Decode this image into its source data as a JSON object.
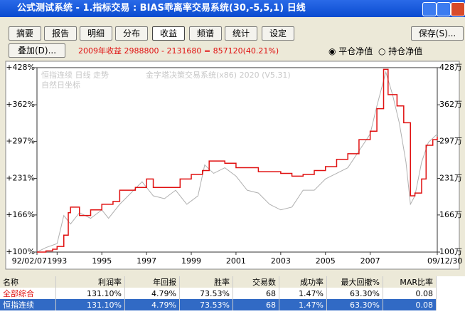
{
  "window": {
    "title": "公式测试系统 - 1.指标交易 : BIAS乖离率交易系统(30,-5,5,1) 日线"
  },
  "tabs": [
    "摘要",
    "报告",
    "明细",
    "分布",
    "收益",
    "频谱",
    "统计",
    "设定"
  ],
  "save_button": "保存(S)...",
  "overlay_button": "叠加(D)...",
  "summary": "2009年收益 2988800 - 2131680 = 857120(40.21%)",
  "radios": [
    "平仓净值",
    "持仓净值"
  ],
  "chart_data": {
    "type": "line",
    "annotations": [
      "恒指连续 日线 走势",
      "金字塔决策交易系统(x86) 2020 (V5.31)",
      "自然日坐标"
    ],
    "xlim": [
      1992.1,
      2010
    ],
    "xticks": [
      {
        "value": 1992.1,
        "label": "92/02/07"
      },
      1993,
      1995,
      1997,
      1999,
      2001,
      2003,
      2005,
      2007,
      {
        "value": 2010,
        "label": "09/12/30"
      }
    ],
    "ylim": [
      100,
      428
    ],
    "yticks": [
      {
        "value": 100,
        "label": "+100%"
      },
      {
        "value": 166,
        "label": "+166%"
      },
      {
        "value": 231,
        "label": "+231%"
      },
      {
        "value": 297,
        "label": "+297%"
      },
      {
        "value": 362,
        "label": "+362%"
      },
      {
        "value": 428,
        "label": "+428%"
      }
    ],
    "y2lim": [
      100,
      428
    ],
    "y2ticks": [
      {
        "value": 100,
        "label": "100万"
      },
      {
        "value": 166,
        "label": "166万"
      },
      {
        "value": 231,
        "label": "231万"
      },
      {
        "value": 297,
        "label": "297万"
      },
      {
        "value": 362,
        "label": "362万"
      },
      {
        "value": 428,
        "label": "428万"
      }
    ],
    "series": [
      {
        "color": "#b0b0b0",
        "step": false,
        "x": [
          1992.1,
          1992.5,
          1993.0,
          1993.3,
          1993.6,
          1994.0,
          1994.5,
          1995.0,
          1995.3,
          1995.8,
          1996.3,
          1996.8,
          1997.3,
          1997.8,
          1998.3,
          1998.8,
          1999.3,
          1999.6,
          2000.0,
          2000.5,
          2001.0,
          2001.5,
          2002.0,
          2002.5,
          2003.0,
          2003.5,
          2004.0,
          2004.5,
          2005.0,
          2005.5,
          2006.0,
          2006.5,
          2007.0,
          2007.3,
          2007.7,
          2008.0,
          2008.3,
          2008.6,
          2008.8,
          2009.0,
          2009.3,
          2009.6,
          2010
        ],
        "values": [
          100,
          108,
          115,
          165,
          150,
          170,
          160,
          175,
          160,
          185,
          205,
          225,
          200,
          195,
          210,
          185,
          200,
          255,
          240,
          250,
          235,
          210,
          205,
          185,
          175,
          180,
          210,
          210,
          230,
          240,
          250,
          280,
          310,
          360,
          420,
          380,
          330,
          260,
          185,
          200,
          260,
          295,
          310
        ]
      },
      {
        "color": "#e01010",
        "step": true,
        "x": [
          1992.1,
          1992.5,
          1992.8,
          1993.0,
          1993.3,
          1993.5,
          1993.6,
          1994.0,
          1994.5,
          1995.0,
          1995.5,
          1995.8,
          1996.5,
          1997.0,
          1997.3,
          1998.0,
          1998.5,
          1999.0,
          1999.5,
          1999.8,
          2000.5,
          2001.0,
          2001.5,
          2002.0,
          2003.0,
          2003.5,
          2004.0,
          2004.5,
          2005.0,
          2005.5,
          2006.0,
          2006.5,
          2007.0,
          2007.3,
          2007.6,
          2007.8,
          2008.2,
          2008.5,
          2008.8,
          2009.0,
          2009.3,
          2009.5,
          2009.8,
          2010
        ],
        "values": [
          100,
          102,
          105,
          110,
          130,
          170,
          180,
          165,
          175,
          185,
          190,
          210,
          215,
          230,
          215,
          215,
          230,
          238,
          245,
          262,
          258,
          250,
          250,
          243,
          240,
          235,
          238,
          245,
          252,
          265,
          275,
          300,
          315,
          355,
          425,
          380,
          360,
          330,
          200,
          205,
          230,
          290,
          300,
          305
        ]
      }
    ]
  },
  "table": {
    "header": [
      "名称",
      "利润率",
      "年回报",
      "胜率",
      "交易数",
      "成功率",
      "最大回撤%",
      "MAR比率"
    ],
    "rows": [
      [
        "全部综合",
        "131.10%",
        "4.79%",
        "73.53%",
        "68",
        "1.47%",
        "63.30%",
        "0.08"
      ],
      [
        "恒指连续",
        "131.10%",
        "4.79%",
        "73.53%",
        "68",
        "1.47%",
        "63.30%",
        "0.08"
      ]
    ]
  }
}
